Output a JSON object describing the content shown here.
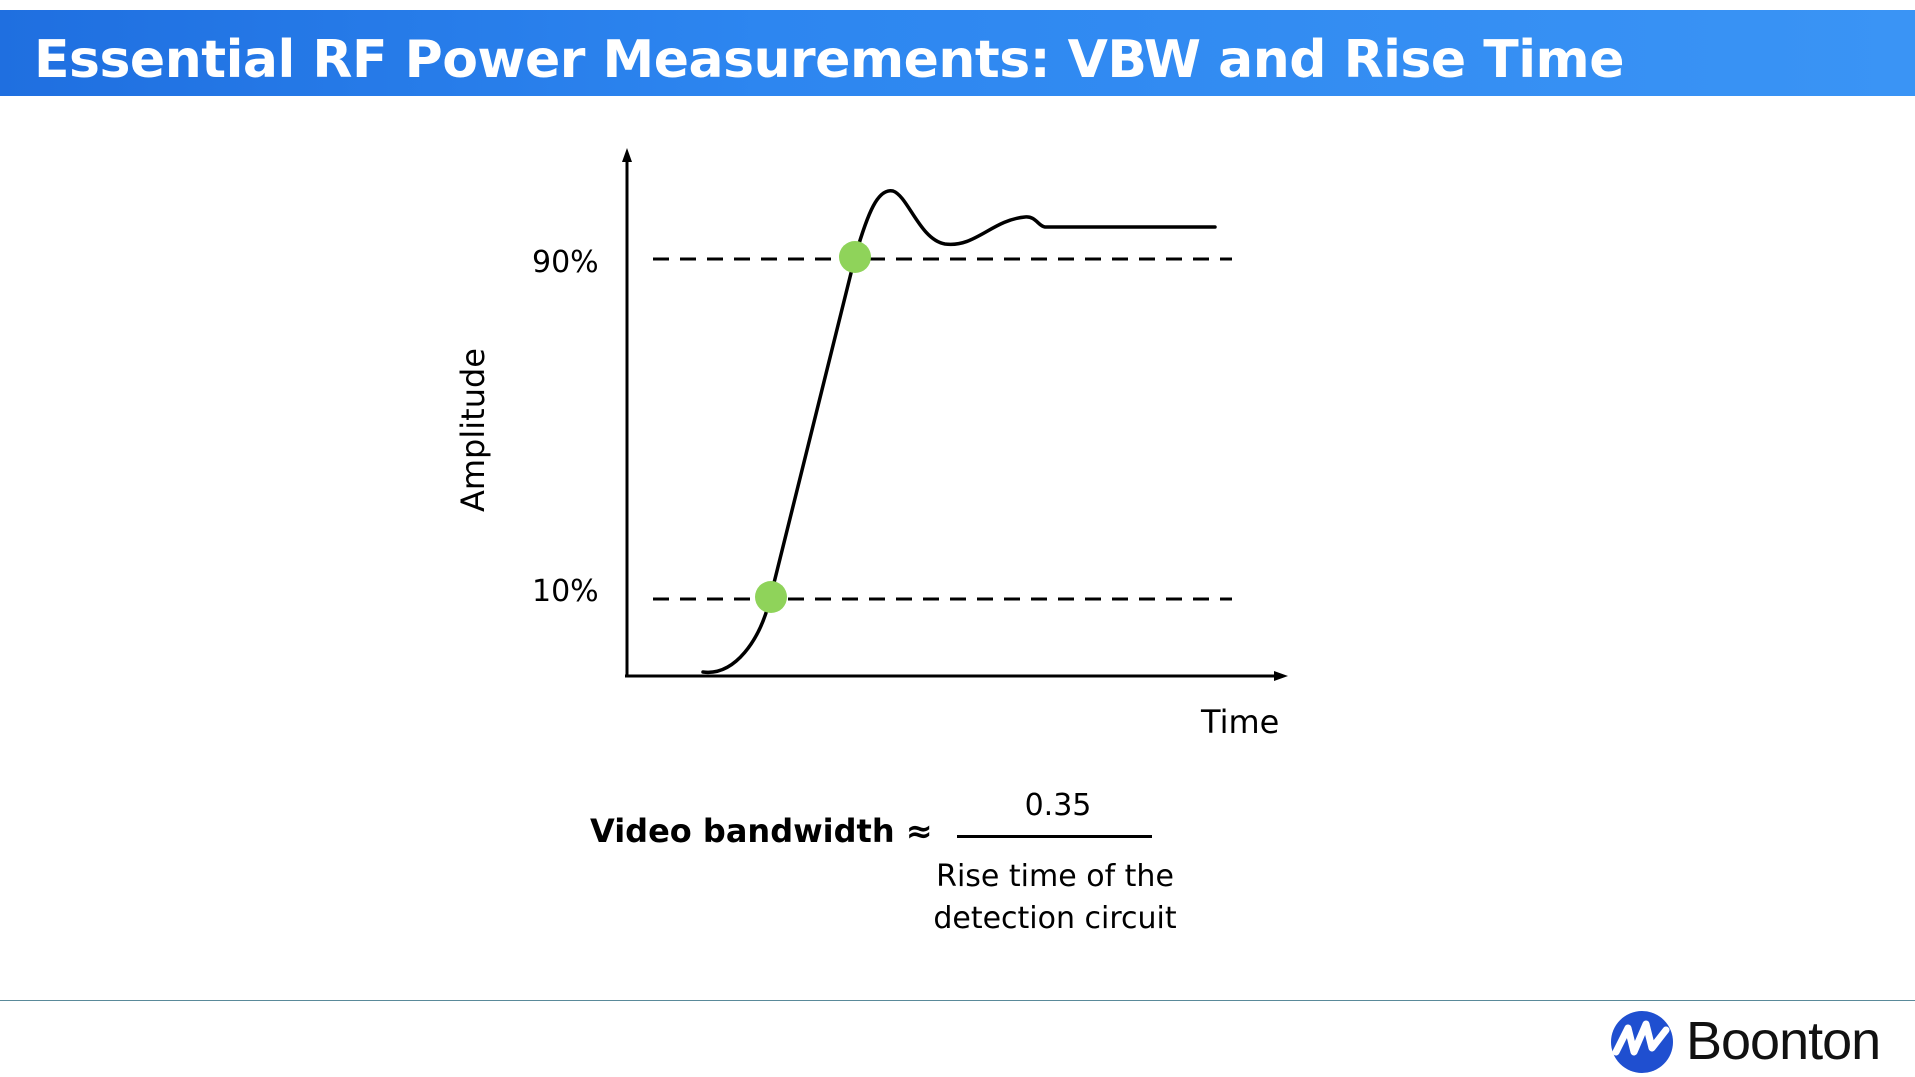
{
  "slide": {
    "title": "Essential RF Power Measurements: VBW and Rise Time"
  },
  "diagram": {
    "y_axis_label": "Amplitude",
    "x_axis_label": "Time",
    "level_high_label": "90%",
    "level_low_label": "10%",
    "marker_color": "#8fd35a",
    "line_color": "#000000"
  },
  "formula": {
    "lhs": "Video bandwidth ≈",
    "numerator": "0.35",
    "denominator_line1": "Rise time of the",
    "denominator_line2": "detection circuit"
  },
  "brand": {
    "name": "Boonton",
    "logo_color": "#1f4fd0"
  }
}
